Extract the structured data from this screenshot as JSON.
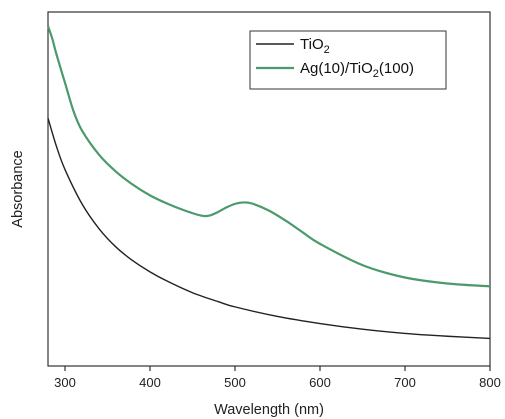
{
  "chart_data": {
    "type": "line",
    "title": "",
    "xlabel": "Wavelength (nm)",
    "ylabel": "Absorbance",
    "xlim": [
      280,
      800
    ],
    "ylim": [
      0,
      1
    ],
    "x_ticks": [
      300,
      400,
      500,
      600,
      700,
      800
    ],
    "y_ticks_labeled": false,
    "grid": false,
    "legend_position": "top-right",
    "series": [
      {
        "name": "TiO",
        "name_subscript": "2",
        "color": "#222222",
        "x": [
          280,
          290,
          300,
          320,
          340,
          360,
          380,
          400,
          420,
          450,
          480,
          500,
          550,
          600,
          650,
          700,
          750,
          800
        ],
        "y": [
          0.7,
          0.62,
          0.555,
          0.458,
          0.388,
          0.336,
          0.297,
          0.266,
          0.24,
          0.207,
          0.182,
          0.167,
          0.14,
          0.12,
          0.104,
          0.092,
          0.084,
          0.078
        ]
      },
      {
        "name": "Ag(10)/TiO",
        "name_subscript": "2",
        "name_suffix": "(100)",
        "color": "#4a9a6c",
        "x": [
          280,
          285,
          290,
          300,
          310,
          320,
          340,
          360,
          380,
          400,
          420,
          440,
          460,
          470,
          480,
          490,
          500,
          510,
          520,
          540,
          560,
          580,
          600,
          650,
          700,
          750,
          800
        ],
        "y": [
          0.96,
          0.925,
          0.88,
          0.8,
          0.72,
          0.665,
          0.597,
          0.549,
          0.512,
          0.482,
          0.459,
          0.44,
          0.425,
          0.425,
          0.435,
          0.448,
          0.458,
          0.462,
          0.459,
          0.439,
          0.41,
          0.377,
          0.345,
          0.285,
          0.25,
          0.233,
          0.225
        ]
      }
    ]
  }
}
